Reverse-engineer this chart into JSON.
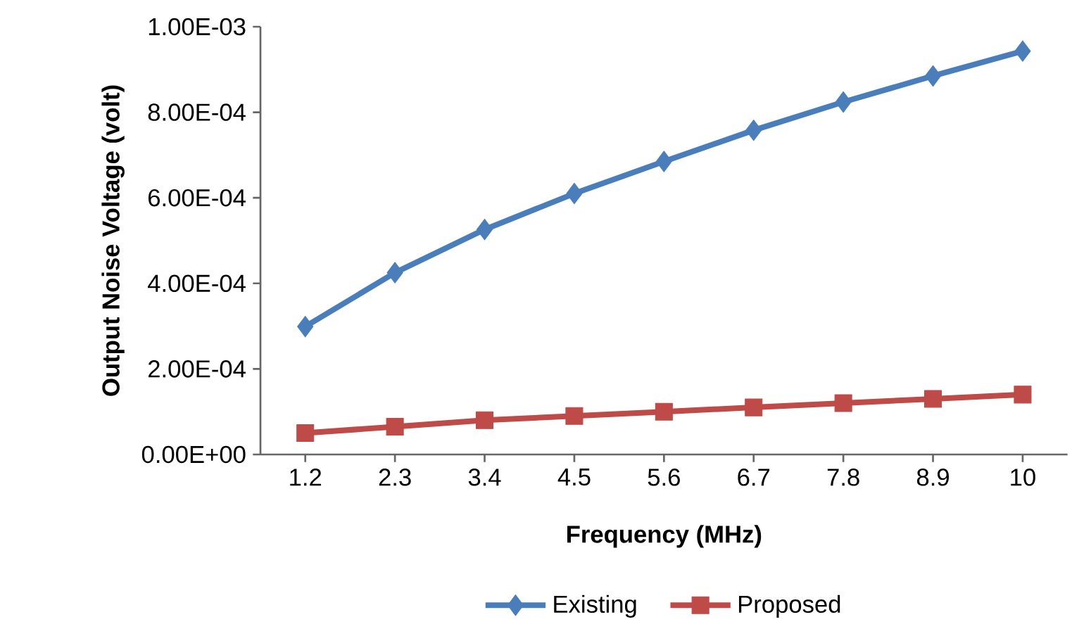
{
  "chart_data": {
    "type": "line",
    "xlabel": "Frequency (MHz)",
    "ylabel": "Output Noise Voltage (volt)",
    "categories": [
      "1.2",
      "2.3",
      "3.4",
      "4.5",
      "5.6",
      "6.7",
      "7.8",
      "8.9",
      "10"
    ],
    "series": [
      {
        "name": "Existing",
        "color": "#4a7ebb",
        "marker": "diamond",
        "values": [
          0.000299,
          0.000425,
          0.000526,
          0.00061,
          0.000685,
          0.000758,
          0.000824,
          0.000885,
          0.000943
        ]
      },
      {
        "name": "Proposed",
        "color": "#be4b48",
        "marker": "square",
        "values": [
          5e-05,
          6.5e-05,
          8e-05,
          9e-05,
          0.0001,
          0.00011,
          0.00012,
          0.00013,
          0.00014
        ]
      }
    ],
    "ylim": [
      0,
      0.001
    ],
    "yticks": [
      {
        "value": 0,
        "label": "0.00E+00"
      },
      {
        "value": 0.0002,
        "label": "2.00E-04"
      },
      {
        "value": 0.0004,
        "label": "4.00E-04"
      },
      {
        "value": 0.0006,
        "label": "6.00E-04"
      },
      {
        "value": 0.0008,
        "label": "8.00E-04"
      },
      {
        "value": 0.001,
        "label": "1.00E-03"
      }
    ],
    "grid": false,
    "legend": "bottom",
    "line_style": "solid"
  }
}
